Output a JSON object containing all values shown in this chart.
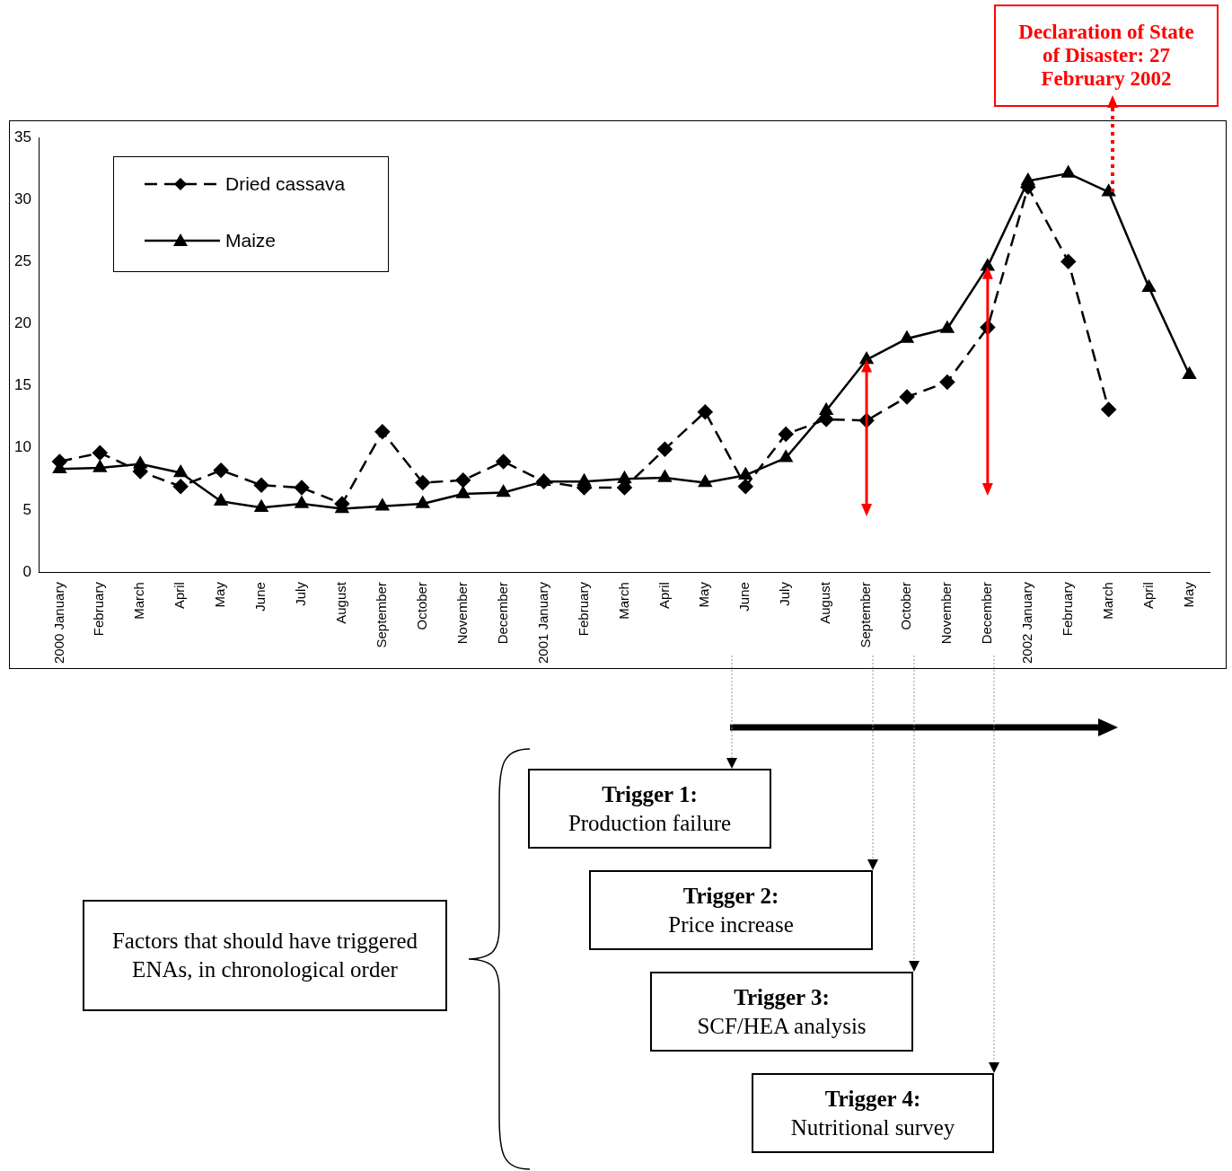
{
  "chart_data": {
    "type": "line",
    "categories": [
      "2000 January",
      "February",
      "March",
      "April",
      "May",
      "June",
      "July",
      "August",
      "September",
      "October",
      "November",
      "December",
      "2001 January",
      "February",
      "March",
      "April",
      "May",
      "June",
      "July",
      "August",
      "September",
      "October",
      "November",
      "December",
      "2002 January",
      "February",
      "March",
      "April",
      "May"
    ],
    "series": [
      {
        "name": "Dried cassava",
        "color": "#000000",
        "line_style": "dashed",
        "marker": "diamond",
        "values": [
          8.9,
          9.6,
          8.1,
          6.9,
          8.2,
          7.0,
          6.8,
          5.5,
          11.3,
          7.2,
          7.4,
          8.9,
          7.3,
          6.8,
          6.8,
          9.9,
          12.9,
          6.9,
          11.1,
          12.3,
          12.2,
          14.1,
          15.3,
          19.7,
          31.0,
          25.0,
          13.1,
          null,
          null
        ]
      },
      {
        "name": "Maize",
        "color": "#000000",
        "line_style": "solid",
        "marker": "triangle",
        "values": [
          8.3,
          8.4,
          8.7,
          8.0,
          5.7,
          5.2,
          5.5,
          5.1,
          5.3,
          5.5,
          6.3,
          6.4,
          7.3,
          7.3,
          7.5,
          7.6,
          7.2,
          7.8,
          9.2,
          13.0,
          17.1,
          18.8,
          19.6,
          24.6,
          31.5,
          32.1,
          30.6,
          22.9,
          15.9
        ]
      }
    ],
    "ylim": [
      0,
      35
    ],
    "yticks": [
      0,
      5,
      10,
      15,
      20,
      25,
      30,
      35
    ],
    "legend": "top left",
    "annotations": [
      "Declaration of State of Disaster: 27 February 2002",
      "Trigger 1:\nProduction failure",
      "Trigger 2:\nPrice increase",
      "Trigger 3:\nSCF/HEA analysis",
      "Trigger 4:\nNutritional survey",
      "Factors that should have triggered ENAs, in chronological order"
    ]
  }
}
